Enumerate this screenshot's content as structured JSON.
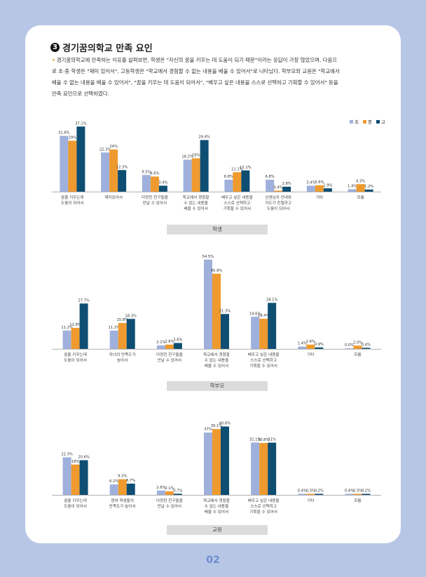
{
  "section": {
    "number": "3",
    "title": "경기꿈의학교 만족 요인",
    "intro_bullet": "•",
    "intro_lines": [
      "경기꿈의학교에 만족하는 이유를 살펴보면, 학생은 \"자신의 꿈을 키우는 데 도움이 되기 때문\"이라는 응답이 가장 많았으며, 다음으",
      "로 초·중 학생은 \"재미 있어서\", 고등학생은 \"학교에서 경험할 수 없는 내용을 배울 수 있어서\"로 나타났다. 학부모와 교원은 \"학교에서",
      "배울 수 없는 내용을 배울 수 있어서\", \"꿈을 키우는 데 도움이 되어서\", \"배우고 싶은 내용을 스스로 선택하고 기획할 수 있어서\" 등을",
      "만족 요인으로 선택하였다."
    ]
  },
  "legend": [
    {
      "label": "초",
      "color": "#9fb0dc"
    },
    {
      "label": "중",
      "color": "#ef9a2e"
    },
    {
      "label": "고",
      "color": "#0e4e73"
    }
  ],
  "chart_data": [
    {
      "type": "bar",
      "title": "학생",
      "series_names": [
        "초",
        "중",
        "고"
      ],
      "categories": [
        [
          "꿈을 키우는데",
          "도움이 되어서"
        ],
        [
          "재미있어서"
        ],
        [
          "다양한 친구들을",
          "만날 수 있어서"
        ],
        [
          "학교에서 경험할",
          "수 없는 내용을",
          "배울 수 있어서"
        ],
        [
          "배우고 싶은 내용을",
          "스스로 선택하고",
          "기획할 수 있어서"
        ],
        [
          "선생님의 안내와",
          "지도가 친절하고",
          "도움이 되어서"
        ],
        [
          "기타"
        ],
        [
          "모름"
        ]
      ],
      "values": [
        [
          31.8,
          29,
          37.1
        ],
        [
          22.3,
          24,
          12.3
        ],
        [
          9.5,
          8.6,
          3.4
        ],
        [
          18.2,
          19,
          29.4
        ],
        [
          6.8,
          11.1,
          12.1
        ],
        [
          6.8,
          0.4,
          2.8
        ],
        [
          3.4,
          3.6,
          1.9
        ],
        [
          1.4,
          4.3,
          1.2
        ]
      ],
      "labels": [
        [
          "31.8%",
          "29%",
          "37.1%"
        ],
        [
          "22.3%",
          "24%",
          "12.3%"
        ],
        [
          "9.5%",
          "8.6%",
          "3.4%"
        ],
        [
          "18.2%",
          "19%",
          "29.4%"
        ],
        [
          "6.8%",
          "11.1%",
          "12.1%"
        ],
        [
          "6.8%",
          "0.4%",
          "2.8%"
        ],
        [
          "3.4%",
          "3.6%",
          "1.9%"
        ],
        [
          "1.4%",
          "4.3%",
          "1.2%"
        ]
      ],
      "ylim": [
        0,
        40
      ]
    },
    {
      "type": "bar",
      "title": "학부모",
      "series_names": [
        "초",
        "중",
        "고"
      ],
      "categories": [
        [
          "꿈을 키우는데",
          "도움이 되어서"
        ],
        [
          "자녀의 만족도가",
          "높아서"
        ],
        [
          "다양한 친구들을",
          "만날 수 있어서"
        ],
        [
          "학교에서 경험할",
          "수 없는 내용을",
          "배울 수 있어서"
        ],
        [
          "배우고 싶은 내용을",
          "스스로 선택하고",
          "기획할 수 있어서"
        ],
        [
          "기타"
        ],
        [
          "모름"
        ]
      ],
      "values": [
        [
          11.2,
          12.8,
          27.7
        ],
        [
          11.2,
          15.8,
          18.3
        ],
        [
          2.1,
          2.6,
          3.6
        ],
        [
          54.5,
          45.9,
          21.3
        ],
        [
          19.6,
          18.4,
          28.1
        ],
        [
          1.4,
          2.6,
          0.9
        ],
        [
          0,
          2,
          0.4
        ]
      ],
      "labels": [
        [
          "11.2%",
          "12.8%",
          "27.7%"
        ],
        [
          "11.2%",
          "15.8%",
          "18.3%"
        ],
        [
          "2.1%",
          "2.6%",
          "3.6%"
        ],
        [
          "54.5%",
          "45.9%",
          "21.3%"
        ],
        [
          "19.6%",
          "18.4%",
          "28.1%"
        ],
        [
          "1.4%",
          "2.6%",
          "0.9%"
        ],
        [
          "0.0%",
          "2.0%",
          "0.4%"
        ]
      ],
      "ylim": [
        0,
        60
      ]
    },
    {
      "type": "bar",
      "title": "교원",
      "series_names": [
        "초",
        "중",
        "고"
      ],
      "categories": [
        [
          "꿈을 키우는데",
          "도움이 되어서"
        ],
        [
          "참여 학생들의",
          "만족도가 높아서"
        ],
        [
          "다양한 친구들을",
          "만날 수 있어서"
        ],
        [
          "학교에서 경험할",
          "수 없는 내용을",
          "배울 수 있어서"
        ],
        [
          "배우고 싶은 내용을",
          "스스로 선택하고",
          "기획할 수 있어서"
        ],
        [
          "기타"
        ],
        [
          "모름"
        ]
      ],
      "values": [
        [
          22.3,
          18,
          20.6
        ],
        [
          6.2,
          9.3,
          6.7
        ],
        [
          2.6,
          2.1,
          0.7
        ],
        [
          37,
          39.1,
          40.6
        ],
        [
          31.1,
          30.8,
          31
        ],
        [
          0.4,
          0.3,
          0.2
        ],
        [
          0.4,
          0.3,
          0.2
        ]
      ],
      "labels": [
        [
          "22.3%",
          "18%",
          "20.6%"
        ],
        [
          "6.2%",
          "9.3%",
          "6.7%"
        ],
        [
          "2.6%",
          "2.1%",
          "0.7%"
        ],
        [
          "37%",
          "39.1%",
          "40.6%"
        ],
        [
          "31.1%",
          "30.8%",
          "31%"
        ],
        [
          "0.4%",
          "0.3%",
          "0.2%"
        ],
        [
          "0.4%",
          "0.3%",
          "0.2%"
        ]
      ],
      "ylim": [
        0,
        45
      ]
    }
  ],
  "page_number": "02"
}
